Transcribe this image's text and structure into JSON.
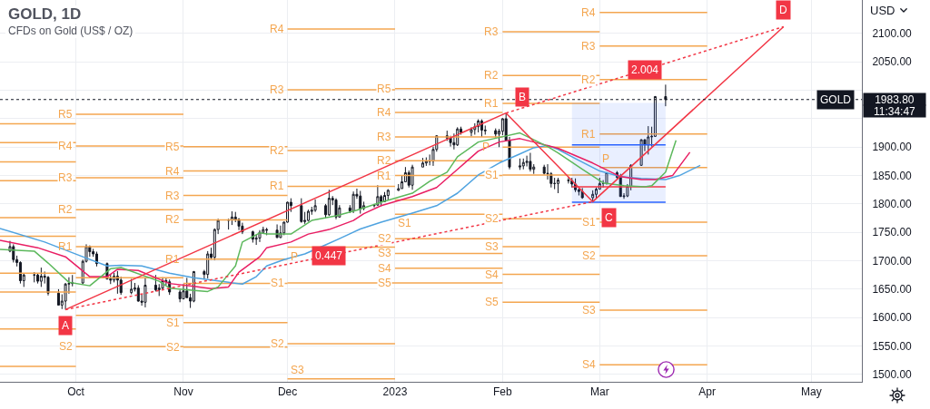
{
  "chart_data": {
    "type": "candlestick",
    "title": "GOLD, 1D",
    "subtitle": "CFDs on Gold (US$ / OZ)",
    "ylabel": "USD",
    "color": "#131722",
    "x": [
      "2022-09-12",
      "2022-09-13",
      "2022-09-14",
      "2022-09-15",
      "2022-09-16",
      "2022-09-19",
      "2022-09-20",
      "2022-09-21",
      "2022-09-22",
      "2022-09-23",
      "2022-09-26",
      "2022-09-27",
      "2022-09-28",
      "2022-09-29",
      "2022-09-30",
      "2022-10-03",
      "2022-10-04",
      "2022-10-05",
      "2022-10-06",
      "2022-10-07",
      "2022-10-10",
      "2022-10-11",
      "2022-10-12",
      "2022-10-13",
      "2022-10-14",
      "2022-10-17",
      "2022-10-18",
      "2022-10-19",
      "2022-10-20",
      "2022-10-21",
      "2022-10-24",
      "2022-10-25",
      "2022-10-26",
      "2022-10-27",
      "2022-10-28",
      "2022-10-31",
      "2022-11-01",
      "2022-11-02",
      "2022-11-03",
      "2022-11-04",
      "2022-11-07",
      "2022-11-08",
      "2022-11-09",
      "2022-11-10",
      "2022-11-11",
      "2022-11-14",
      "2022-11-15",
      "2022-11-16",
      "2022-11-17",
      "2022-11-18",
      "2022-11-21",
      "2022-11-22",
      "2022-11-23",
      "2022-11-24",
      "2022-11-25",
      "2022-11-28",
      "2022-11-29",
      "2022-11-30",
      "2022-12-01",
      "2022-12-02",
      "2022-12-05",
      "2022-12-06",
      "2022-12-07",
      "2022-12-08",
      "2022-12-09",
      "2022-12-12",
      "2022-12-13",
      "2022-12-14",
      "2022-12-15",
      "2022-12-16",
      "2022-12-19",
      "2022-12-20",
      "2022-12-21",
      "2022-12-22",
      "2022-12-23",
      "2022-12-26",
      "2022-12-27",
      "2022-12-28",
      "2022-12-29",
      "2022-12-30",
      "2023-01-02",
      "2023-01-03",
      "2023-01-04",
      "2023-01-05",
      "2023-01-06",
      "2023-01-09",
      "2023-01-10",
      "2023-01-11",
      "2023-01-12",
      "2023-01-13",
      "2023-01-16",
      "2023-01-17",
      "2023-01-18",
      "2023-01-19",
      "2023-01-20",
      "2023-01-23",
      "2023-01-24",
      "2023-01-25",
      "2023-01-26",
      "2023-01-27",
      "2023-01-30",
      "2023-01-31",
      "2023-02-01",
      "2023-02-02",
      "2023-02-03",
      "2023-02-06",
      "2023-02-07",
      "2023-02-08",
      "2023-02-09",
      "2023-02-10",
      "2023-02-13",
      "2023-02-14",
      "2023-02-15",
      "2023-02-16",
      "2023-02-17",
      "2023-02-20",
      "2023-02-21",
      "2023-02-22",
      "2023-02-23",
      "2023-02-24",
      "2023-02-27",
      "2023-02-28",
      "2023-03-01",
      "2023-03-02",
      "2023-03-03",
      "2023-03-06",
      "2023-03-07",
      "2023-03-08",
      "2023-03-09",
      "2023-03-10",
      "2023-03-13",
      "2023-03-14",
      "2023-03-15",
      "2023-03-16",
      "2023-03-17",
      "2023-03-20"
    ],
    "ohlc": [
      [
        1717,
        1735,
        1715,
        1725
      ],
      [
        1725,
        1729,
        1697,
        1702
      ],
      [
        1702,
        1709,
        1690,
        1697
      ],
      [
        1697,
        1699,
        1660,
        1665
      ],
      [
        1665,
        1677,
        1654,
        1675
      ],
      [
        1675,
        1680,
        1662,
        1675
      ],
      [
        1675,
        1677,
        1660,
        1664
      ],
      [
        1664,
        1688,
        1654,
        1673
      ],
      [
        1673,
        1681,
        1660,
        1671
      ],
      [
        1671,
        1673,
        1639,
        1643
      ],
      [
        1643,
        1650,
        1622,
        1622
      ],
      [
        1622,
        1641,
        1615,
        1629
      ],
      [
        1629,
        1661,
        1614,
        1659
      ],
      [
        1659,
        1671,
        1642,
        1660
      ],
      [
        1660,
        1675,
        1655,
        1661
      ],
      [
        1661,
        1702,
        1659,
        1699
      ],
      [
        1699,
        1729,
        1697,
        1725
      ],
      [
        1725,
        1727,
        1707,
        1716
      ],
      [
        1716,
        1721,
        1707,
        1712
      ],
      [
        1712,
        1716,
        1690,
        1695
      ],
      [
        1695,
        1697,
        1667,
        1668
      ],
      [
        1668,
        1677,
        1659,
        1666
      ],
      [
        1666,
        1679,
        1662,
        1673
      ],
      [
        1673,
        1682,
        1642,
        1666
      ],
      [
        1666,
        1672,
        1640,
        1644
      ],
      [
        1644,
        1668,
        1641,
        1650
      ],
      [
        1650,
        1661,
        1646,
        1652
      ],
      [
        1652,
        1657,
        1628,
        1629
      ],
      [
        1629,
        1641,
        1621,
        1627
      ],
      [
        1627,
        1669,
        1618,
        1657
      ],
      [
        1657,
        1675,
        1646,
        1649
      ],
      [
        1649,
        1659,
        1638,
        1652
      ],
      [
        1652,
        1671,
        1649,
        1665
      ],
      [
        1665,
        1670,
        1657,
        1663
      ],
      [
        1663,
        1667,
        1640,
        1645
      ],
      [
        1645,
        1649,
        1627,
        1633
      ],
      [
        1633,
        1659,
        1632,
        1647
      ],
      [
        1647,
        1670,
        1635,
        1635
      ],
      [
        1635,
        1642,
        1617,
        1629
      ],
      [
        1629,
        1682,
        1627,
        1681
      ],
      [
        1681,
        1684,
        1667,
        1676
      ],
      [
        1676,
        1717,
        1669,
        1712
      ],
      [
        1712,
        1723,
        1702,
        1706
      ],
      [
        1706,
        1757,
        1701,
        1755
      ],
      [
        1755,
        1774,
        1747,
        1771
      ],
      [
        1771,
        1774,
        1755,
        1772
      ],
      [
        1772,
        1787,
        1763,
        1777
      ],
      [
        1777,
        1786,
        1768,
        1773
      ],
      [
        1773,
        1775,
        1754,
        1761
      ],
      [
        1761,
        1767,
        1747,
        1751
      ],
      [
        1751,
        1753,
        1732,
        1738
      ],
      [
        1738,
        1746,
        1728,
        1740
      ],
      [
        1740,
        1754,
        1733,
        1750
      ],
      [
        1750,
        1760,
        1749,
        1755
      ],
      [
        1755,
        1758,
        1745,
        1754
      ],
      [
        1754,
        1764,
        1740,
        1741
      ],
      [
        1741,
        1762,
        1740,
        1749
      ],
      [
        1749,
        1769,
        1745,
        1768
      ],
      [
        1768,
        1804,
        1767,
        1803
      ],
      [
        1803,
        1810,
        1786,
        1797
      ],
      [
        1797,
        1810,
        1767,
        1769
      ],
      [
        1769,
        1786,
        1765,
        1771
      ],
      [
        1771,
        1790,
        1769,
        1787
      ],
      [
        1787,
        1795,
        1781,
        1789
      ],
      [
        1789,
        1808,
        1786,
        1797
      ],
      [
        1797,
        1800,
        1775,
        1781
      ],
      [
        1781,
        1825,
        1779,
        1810
      ],
      [
        1810,
        1814,
        1798,
        1807
      ],
      [
        1807,
        1810,
        1773,
        1777
      ],
      [
        1777,
        1798,
        1776,
        1793
      ],
      [
        1793,
        1798,
        1784,
        1788
      ],
      [
        1788,
        1822,
        1784,
        1817
      ],
      [
        1817,
        1827,
        1809,
        1814
      ],
      [
        1814,
        1823,
        1783,
        1792
      ],
      [
        1792,
        1804,
        1789,
        1797
      ],
      [
        1797,
        1800,
        1794,
        1798
      ],
      [
        1798,
        1833,
        1797,
        1813
      ],
      [
        1813,
        1816,
        1796,
        1804
      ],
      [
        1804,
        1821,
        1803,
        1815
      ],
      [
        1815,
        1826,
        1807,
        1824
      ],
      [
        1824,
        1835,
        1823,
        1827
      ],
      [
        1827,
        1850,
        1827,
        1839
      ],
      [
        1839,
        1865,
        1839,
        1855
      ],
      [
        1855,
        1859,
        1829,
        1833
      ],
      [
        1833,
        1869,
        1825,
        1865
      ],
      [
        1865,
        1881,
        1865,
        1872
      ],
      [
        1872,
        1882,
        1867,
        1876
      ],
      [
        1876,
        1887,
        1868,
        1875
      ],
      [
        1875,
        1901,
        1867,
        1896
      ],
      [
        1896,
        1921,
        1892,
        1920
      ],
      [
        1920,
        1929,
        1911,
        1916
      ],
      [
        1916,
        1920,
        1901,
        1908
      ],
      [
        1908,
        1924,
        1896,
        1904
      ],
      [
        1904,
        1935,
        1902,
        1932
      ],
      [
        1932,
        1936,
        1922,
        1926
      ],
      [
        1926,
        1935,
        1919,
        1931
      ],
      [
        1931,
        1942,
        1922,
        1936
      ],
      [
        1936,
        1949,
        1926,
        1946
      ],
      [
        1946,
        1949,
        1918,
        1930
      ],
      [
        1930,
        1938,
        1922,
        1929
      ],
      [
        1929,
        1933,
        1917,
        1923
      ],
      [
        1923,
        1932,
        1900,
        1928
      ],
      [
        1928,
        1951,
        1921,
        1950
      ],
      [
        1950,
        1960,
        1910,
        1912
      ],
      [
        1912,
        1918,
        1861,
        1865
      ],
      [
        1865,
        1880,
        1860,
        1867
      ],
      [
        1867,
        1880,
        1861,
        1873
      ],
      [
        1873,
        1885,
        1866,
        1875
      ],
      [
        1875,
        1890,
        1857,
        1861
      ],
      [
        1861,
        1870,
        1853,
        1865
      ],
      [
        1865,
        1869,
        1852,
        1854
      ],
      [
        1854,
        1870,
        1843,
        1853
      ],
      [
        1853,
        1856,
        1829,
        1836
      ],
      [
        1836,
        1846,
        1826,
        1836
      ],
      [
        1836,
        1846,
        1819,
        1842
      ],
      [
        1842,
        1847,
        1836,
        1841
      ],
      [
        1841,
        1846,
        1829,
        1835
      ],
      [
        1835,
        1845,
        1821,
        1825
      ],
      [
        1825,
        1828,
        1815,
        1822
      ],
      [
        1822,
        1828,
        1809,
        1811
      ],
      [
        1811,
        1824,
        1804,
        1817
      ],
      [
        1817,
        1829,
        1809,
        1826
      ],
      [
        1826,
        1846,
        1826,
        1836
      ],
      [
        1836,
        1842,
        1829,
        1836
      ],
      [
        1836,
        1856,
        1834,
        1855
      ],
      [
        1855,
        1858,
        1843,
        1847
      ],
      [
        1847,
        1853,
        1813,
        1813
      ],
      [
        1813,
        1819,
        1809,
        1814
      ],
      [
        1814,
        1835,
        1812,
        1831
      ],
      [
        1831,
        1870,
        1824,
        1868
      ],
      [
        1868,
        1914,
        1867,
        1913
      ],
      [
        1913,
        1914,
        1893,
        1904
      ],
      [
        1904,
        1937,
        1887,
        1918
      ],
      [
        1918,
        1936,
        1901,
        1919
      ],
      [
        1919,
        1990,
        1918,
        1989
      ],
      [
        1989,
        2010,
        1972,
        1983.8
      ]
    ],
    "series": [
      {
        "type": "line",
        "color": "#f4a650",
        "x": [
          "2022-09-09T03:00",
          "2022-10-01"
        ],
        "values": [
          1941,
          1941
        ]
      },
      {
        "type": "line",
        "color": "#f4a650",
        "x": [
          "2022-09-09T03:00",
          "2022-10-01"
        ],
        "values": [
          1908,
          1908
        ]
      },
      {
        "type": "line",
        "color": "#f4a650",
        "x": [
          "2022-09-09T03:00",
          "2022-10-01"
        ],
        "values": [
          1874,
          1874
        ]
      },
      {
        "type": "line",
        "color": "#f4a650",
        "x": [
          "2022-09-09T03:00",
          "2022-10-01"
        ],
        "values": [
          1841,
          1841
        ]
      },
      {
        "type": "line",
        "color": "#f4a650",
        "x": [
          "2022-09-09T03:00",
          "2022-10-01"
        ],
        "values": [
          1776,
          1776
        ]
      },
      {
        "type": "line",
        "color": "#f4a650",
        "x": [
          "2022-09-09T03:00",
          "2022-10-01"
        ],
        "values": [
          1743,
          1743
        ]
      },
      {
        "type": "line",
        "color": "#f4a650",
        "x": [
          "2022-09-09T03:00",
          "2022-10-01"
        ],
        "values": [
          1678,
          1678
        ]
      },
      {
        "type": "line",
        "color": "#f4a650",
        "x": [
          "2022-09-09T03:00",
          "2022-10-01"
        ],
        "values": [
          1645,
          1645
        ]
      },
      {
        "type": "line",
        "color": "#f4a650",
        "x": [
          "2022-09-09T03:00",
          "2022-10-01"
        ],
        "values": [
          1580,
          1580
        ]
      },
      {
        "type": "line",
        "color": "#f4a650",
        "x": [
          "2022-09-09T03:00",
          "2022-10-01"
        ],
        "values": [
          1514,
          1514
        ]
      },
      {
        "type": "line",
        "name": "R5",
        "color": "#f4a650",
        "x": [
          "2022-10-01",
          "2022-11-01"
        ],
        "values": [
          1958,
          1958
        ]
      },
      {
        "type": "line",
        "name": "R4",
        "color": "#f4a650",
        "x": [
          "2022-10-01",
          "2022-11-01"
        ],
        "values": [
          1902,
          1902
        ]
      },
      {
        "type": "line",
        "name": "R3",
        "color": "#f4a650",
        "x": [
          "2022-10-01",
          "2022-11-01"
        ],
        "values": [
          1846,
          1846
        ]
      },
      {
        "type": "line",
        "name": "R2",
        "color": "#f4a650",
        "x": [
          "2022-10-01",
          "2022-11-01"
        ],
        "values": [
          1790,
          1790
        ]
      },
      {
        "type": "line",
        "name": "R1",
        "color": "#f4a650",
        "x": [
          "2022-10-01",
          "2022-11-01"
        ],
        "values": [
          1725,
          1725
        ]
      },
      {
        "type": "line",
        "color": "#f4a650",
        "x": [
          "2022-10-01",
          "2022-11-01"
        ],
        "values": [
          1670,
          1670
        ]
      },
      {
        "type": "line",
        "color": "#f4a650",
        "x": [
          "2022-10-01",
          "2022-11-01"
        ],
        "values": [
          1604,
          1604
        ]
      },
      {
        "type": "line",
        "name": "S2",
        "color": "#f4a650",
        "x": [
          "2022-10-01",
          "2022-11-01"
        ],
        "values": [
          1549,
          1549
        ]
      },
      {
        "type": "line",
        "name": "R5",
        "color": "#f4a650",
        "x": [
          "2022-11-01",
          "2022-12-01"
        ],
        "values": [
          1901,
          1901
        ]
      },
      {
        "type": "line",
        "name": "R4",
        "color": "#f4a650",
        "x": [
          "2022-11-01",
          "2022-12-01"
        ],
        "values": [
          1858,
          1858
        ]
      },
      {
        "type": "line",
        "name": "R3",
        "color": "#f4a650",
        "x": [
          "2022-11-01",
          "2022-12-01"
        ],
        "values": [
          1815,
          1815
        ]
      },
      {
        "type": "line",
        "name": "R2",
        "color": "#f4a650",
        "x": [
          "2022-11-01",
          "2022-12-01"
        ],
        "values": [
          1772,
          1772
        ]
      },
      {
        "type": "line",
        "name": "R1",
        "color": "#f4a650",
        "x": [
          "2022-11-01",
          "2022-12-01"
        ],
        "values": [
          1703,
          1703
        ]
      },
      {
        "type": "line",
        "color": "#f4a650",
        "x": [
          "2022-11-01",
          "2022-12-01"
        ],
        "values": [
          1660,
          1660
        ]
      },
      {
        "type": "line",
        "name": "S1",
        "color": "#f4a650",
        "x": [
          "2022-11-01",
          "2022-12-01"
        ],
        "values": [
          1591,
          1591
        ]
      },
      {
        "type": "line",
        "name": "S2",
        "color": "#f4a650",
        "x": [
          "2022-11-01",
          "2022-12-01"
        ],
        "values": [
          1548,
          1548
        ]
      },
      {
        "type": "line",
        "name": "R4",
        "color": "#f4a650",
        "x": [
          "2022-12-01",
          "2023-01-01"
        ],
        "values": [
          2108,
          2108
        ]
      },
      {
        "type": "line",
        "name": "R3",
        "color": "#f4a650",
        "x": [
          "2022-12-01",
          "2023-01-01"
        ],
        "values": [
          2001,
          2001
        ]
      },
      {
        "type": "line",
        "name": "R2",
        "color": "#f4a650",
        "x": [
          "2022-12-01",
          "2023-01-01"
        ],
        "values": [
          1894,
          1894
        ]
      },
      {
        "type": "line",
        "name": "R1",
        "color": "#f4a650",
        "x": [
          "2022-12-01",
          "2023-01-01"
        ],
        "values": [
          1831,
          1831
        ]
      },
      {
        "type": "line",
        "name": "P",
        "color": "#f4a650",
        "x": [
          "2022-12-01",
          "2023-01-01"
        ],
        "values": [
          1724,
          1724
        ]
      },
      {
        "type": "line",
        "name": "S1",
        "color": "#f4a650",
        "x": [
          "2022-12-01",
          "2023-01-01"
        ],
        "values": [
          1661,
          1661
        ]
      },
      {
        "type": "line",
        "name": "S2",
        "color": "#f4a650",
        "x": [
          "2022-12-01",
          "2023-01-01"
        ],
        "values": [
          1554,
          1554
        ]
      },
      {
        "type": "line",
        "name": "S3",
        "color": "#f4a650",
        "x": [
          "2022-12-01",
          "2023-01-01"
        ],
        "values": [
          1492,
          1492
        ]
      },
      {
        "type": "line",
        "name": "R5",
        "color": "#f4a650",
        "x": [
          "2023-01-01",
          "2023-02-01"
        ],
        "values": [
          2003,
          2003
        ]
      },
      {
        "type": "line",
        "name": "R4",
        "color": "#f4a650",
        "x": [
          "2023-01-01",
          "2023-02-01"
        ],
        "values": [
          1961,
          1961
        ]
      },
      {
        "type": "line",
        "name": "R3",
        "color": "#f4a650",
        "x": [
          "2023-01-01",
          "2023-02-01"
        ],
        "values": [
          1918,
          1918
        ]
      },
      {
        "type": "line",
        "name": "R2",
        "color": "#f4a650",
        "x": [
          "2023-01-01",
          "2023-02-01"
        ],
        "values": [
          1876,
          1876
        ]
      },
      {
        "type": "line",
        "name": "R1",
        "color": "#f4a650",
        "x": [
          "2023-01-01",
          "2023-02-01"
        ],
        "values": [
          1850,
          1850
        ]
      },
      {
        "type": "line",
        "color": "#f4a650",
        "x": [
          "2023-01-01",
          "2023-02-01"
        ],
        "values": [
          1807,
          1807
        ]
      },
      {
        "type": "line",
        "name": "S1",
        "color": "#f4a650",
        "x": [
          "2023-01-01",
          "2023-02-01"
        ],
        "values": [
          1782,
          1782
        ]
      },
      {
        "type": "line",
        "name": "S2",
        "color": "#f4a650",
        "x": [
          "2023-01-01",
          "2023-02-01"
        ],
        "values": [
          1739,
          1739
        ]
      },
      {
        "type": "line",
        "name": "S3",
        "color": "#f4a650",
        "x": [
          "2023-01-01",
          "2023-02-01"
        ],
        "values": [
          1713,
          1713
        ]
      },
      {
        "type": "line",
        "name": "S4",
        "color": "#f4a650",
        "x": [
          "2023-01-01",
          "2023-02-01"
        ],
        "values": [
          1687,
          1687
        ]
      },
      {
        "type": "line",
        "name": "S5",
        "color": "#f4a650",
        "x": [
          "2023-01-01",
          "2023-02-01"
        ],
        "values": [
          1661,
          1661
        ]
      },
      {
        "type": "line",
        "name": "R3",
        "color": "#f4a650",
        "x": [
          "2023-02-01",
          "2023-03-01"
        ],
        "values": [
          2103,
          2103
        ]
      },
      {
        "type": "line",
        "name": "R2",
        "color": "#f4a650",
        "x": [
          "2023-02-01",
          "2023-03-01"
        ],
        "values": [
          2026,
          2026
        ]
      },
      {
        "type": "line",
        "name": "R1",
        "color": "#f4a650",
        "x": [
          "2023-02-01",
          "2023-03-01"
        ],
        "values": [
          1977,
          1977
        ]
      },
      {
        "type": "line",
        "name": "P",
        "color": "#f4a650",
        "x": [
          "2023-02-01",
          "2023-03-01"
        ],
        "values": [
          1900,
          1900
        ]
      },
      {
        "type": "line",
        "name": "S1",
        "color": "#f4a650",
        "x": [
          "2023-02-01",
          "2023-03-01"
        ],
        "values": [
          1851,
          1851
        ]
      },
      {
        "type": "line",
        "name": "S2",
        "color": "#f4a650",
        "x": [
          "2023-02-01",
          "2023-03-01"
        ],
        "values": [
          1774,
          1774
        ]
      },
      {
        "type": "line",
        "name": "S3",
        "color": "#f4a650",
        "x": [
          "2023-02-01",
          "2023-03-01"
        ],
        "values": [
          1725,
          1725
        ]
      },
      {
        "type": "line",
        "name": "S4",
        "color": "#f4a650",
        "x": [
          "2023-02-01",
          "2023-03-01"
        ],
        "values": [
          1676,
          1676
        ]
      },
      {
        "type": "line",
        "name": "S5",
        "color": "#f4a650",
        "x": [
          "2023-02-01",
          "2023-03-01"
        ],
        "values": [
          1627,
          1627
        ]
      },
      {
        "type": "line",
        "name": "R4",
        "color": "#f4a650",
        "x": [
          "2023-03-01",
          "2023-04-01"
        ],
        "values": [
          2137,
          2137
        ]
      },
      {
        "type": "line",
        "name": "R3",
        "color": "#f4a650",
        "x": [
          "2023-03-01",
          "2023-04-01"
        ],
        "values": [
          2078,
          2078
        ]
      },
      {
        "type": "line",
        "name": "R2",
        "color": "#f4a650",
        "x": [
          "2023-03-01",
          "2023-04-01"
        ],
        "values": [
          2019,
          2019
        ]
      },
      {
        "type": "line",
        "name": "R1",
        "color": "#f4a650",
        "x": [
          "2023-03-01",
          "2023-04-01"
        ],
        "values": [
          1923,
          1923
        ]
      },
      {
        "type": "line",
        "name": "P",
        "color": "#f4a650",
        "x": [
          "2023-03-01",
          "2023-04-01"
        ],
        "values": [
          1864,
          1864
        ]
      },
      {
        "type": "line",
        "name": "S1",
        "color": "#f4a650",
        "x": [
          "2023-03-01",
          "2023-04-01"
        ],
        "values": [
          1768,
          1768
        ]
      },
      {
        "type": "line",
        "name": "S2",
        "color": "#f4a650",
        "x": [
          "2023-03-01",
          "2023-04-01"
        ],
        "values": [
          1709,
          1709
        ]
      },
      {
        "type": "line",
        "name": "S3",
        "color": "#f4a650",
        "x": [
          "2023-03-01",
          "2023-04-01"
        ],
        "values": [
          1613,
          1613
        ]
      },
      {
        "type": "line",
        "name": "S4",
        "color": "#f4a650",
        "x": [
          "2023-03-01",
          "2023-04-01"
        ],
        "values": [
          1517,
          1517
        ]
      },
      {
        "type": "line",
        "color": "#2962ff",
        "x": [
          "2023-02-21",
          "2023-03-20"
        ],
        "values": [
          1904,
          1904
        ],
        "lower": [
          1803,
          1803
        ],
        "upper": [
          1978,
          1978
        ]
      },
      {
        "type": "line",
        "color": "#2962ff",
        "x": [
          "2023-02-21",
          "2023-03-20"
        ],
        "values": [
          1803,
          1803
        ]
      },
      {
        "type": "line",
        "color": "#f23645",
        "x": [
          "2023-02-21",
          "2023-03-20"
        ],
        "values": [
          1830,
          1830
        ]
      },
      {
        "type": "line",
        "color": "#4fa3e0",
        "x": [
          "2022-09-09T03:00",
          "2022-09-22",
          "2022-10-03",
          "2022-10-10",
          "2022-10-14",
          "2022-10-20",
          "2022-10-28",
          "2022-11-04",
          "2022-11-14",
          "2022-11-18",
          "2022-11-22",
          "2022-11-25",
          "2022-11-30",
          "2022-12-06",
          "2022-12-12",
          "2022-12-16",
          "2022-12-22",
          "2022-12-28",
          "2023-01-06",
          "2023-01-13",
          "2023-01-19",
          "2023-01-25",
          "2023-01-31",
          "2023-02-06",
          "2023-02-10",
          "2023-02-14",
          "2023-02-17",
          "2023-02-22",
          "2023-03-01",
          "2023-03-07",
          "2023-03-13",
          "2023-03-20",
          "2023-03-24",
          "2023-03-30"
        ],
        "values": [
          1757,
          1733,
          1707,
          1691,
          1692,
          1691,
          1678,
          1670,
          1662,
          1659,
          1672,
          1691,
          1702,
          1712,
          1728,
          1739,
          1756,
          1768,
          1784,
          1797,
          1819,
          1851,
          1872,
          1888,
          1899,
          1903,
          1896,
          1880,
          1858,
          1848,
          1845,
          1843,
          1850,
          1868
        ]
      },
      {
        "type": "line",
        "color": "#e91e63",
        "x": [
          "2022-09-09T03:00",
          "2022-09-20",
          "2022-09-28",
          "2022-10-05",
          "2022-10-10",
          "2022-10-13",
          "2022-10-19",
          "2022-10-28",
          "2022-11-04",
          "2022-11-09",
          "2022-11-14",
          "2022-11-17",
          "2022-11-23",
          "2022-11-25",
          "2022-12-02",
          "2022-12-07",
          "2022-12-13",
          "2022-12-20",
          "2022-12-23",
          "2022-12-28",
          "2023-01-06",
          "2023-01-13",
          "2023-01-19",
          "2023-01-25",
          "2023-01-31",
          "2023-02-06",
          "2023-02-10",
          "2023-02-17",
          "2023-02-27",
          "2023-03-07",
          "2023-03-13",
          "2023-03-17",
          "2023-03-22",
          "2023-03-27"
        ],
        "values": [
          1736,
          1723,
          1707,
          1672,
          1672,
          1685,
          1683,
          1660,
          1655,
          1651,
          1654,
          1680,
          1707,
          1723,
          1733,
          1747,
          1755,
          1771,
          1783,
          1797,
          1813,
          1829,
          1861,
          1893,
          1909,
          1915,
          1909,
          1898,
          1872,
          1848,
          1843,
          1843,
          1850,
          1891
        ]
      },
      {
        "type": "line",
        "color": "#5cb85c",
        "x": [
          "2022-09-09T03:00",
          "2022-09-19",
          "2022-09-23",
          "2022-09-29",
          "2022-10-05",
          "2022-10-11",
          "2022-10-14",
          "2022-10-25",
          "2022-10-28",
          "2022-11-04",
          "2022-11-08",
          "2022-11-11",
          "2022-11-16",
          "2022-11-18",
          "2022-11-23",
          "2022-11-25",
          "2022-12-02",
          "2022-12-08",
          "2022-12-15",
          "2022-12-21",
          "2022-12-28",
          "2023-01-06",
          "2023-01-11",
          "2023-01-16",
          "2023-01-19",
          "2023-01-25",
          "2023-01-31",
          "2023-02-06",
          "2023-02-14",
          "2023-02-17",
          "2023-02-24",
          "2023-03-02",
          "2023-03-08",
          "2023-03-14",
          "2023-03-16",
          "2023-03-20",
          "2023-03-23"
        ],
        "values": [
          1720,
          1717,
          1696,
          1662,
          1656,
          1686,
          1688,
          1664,
          1652,
          1648,
          1646,
          1654,
          1691,
          1733,
          1749,
          1747,
          1747,
          1771,
          1779,
          1789,
          1803,
          1819,
          1840,
          1856,
          1883,
          1909,
          1917,
          1925,
          1901,
          1890,
          1861,
          1837,
          1832,
          1830,
          1832,
          1856,
          1912
        ]
      },
      {
        "type": "line",
        "color": "#f23645",
        "x": [
          "2022-09-28",
          "2023-02-02",
          "2023-02-27",
          "2023-04-23"
        ],
        "values": [
          1614,
          1960,
          1804,
          2112
        ]
      },
      {
        "type": "line",
        "color": "#f23645",
        "line_style": "dotted",
        "x": [
          "2022-09-28",
          "2023-02-27"
        ],
        "values": [
          1614,
          1804
        ]
      },
      {
        "type": "line",
        "color": "#f23645",
        "line_style": "dotted",
        "x": [
          "2023-02-02",
          "2023-04-23"
        ],
        "values": [
          1960,
          2112
        ]
      }
    ],
    "xlim": [
      "2022-09-09T03:00",
      "2023-05-15T14:00"
    ],
    "xticks": [
      {
        "value": "2022-10-01",
        "label": "Oct"
      },
      {
        "value": "2022-11-01",
        "label": "Nov"
      },
      {
        "value": "2022-12-01",
        "label": "Dec"
      },
      {
        "value": "2023-01-01",
        "label": "2023"
      },
      {
        "value": "2023-02-01",
        "label": "Feb"
      },
      {
        "value": "2023-03-01",
        "label": "Mar"
      },
      {
        "value": "2023-04-01",
        "label": "Apr"
      },
      {
        "value": "2023-05-01",
        "label": "May"
      }
    ],
    "ylim": [
      1487,
      2159
    ],
    "yticks": [
      {
        "value": 1500,
        "label": "1500.00"
      },
      {
        "value": 1550,
        "label": "1550.00"
      },
      {
        "value": 1600,
        "label": "1600.00"
      },
      {
        "value": 1650,
        "label": "1650.00"
      },
      {
        "value": 1700,
        "label": "1700.00"
      },
      {
        "value": 1750,
        "label": "1750.00"
      },
      {
        "value": 1800,
        "label": "1800.00"
      },
      {
        "value": 1850,
        "label": "1850.00"
      },
      {
        "value": 1900,
        "label": "1900.00"
      },
      {
        "value": 1950,
        "label": null
      },
      {
        "value": 2000,
        "label": null
      },
      {
        "value": 2050,
        "label": "2050.00"
      },
      {
        "value": 2100,
        "label": "2100.00"
      }
    ],
    "grid": true,
    "ref_lines": [
      {
        "axis": "y",
        "value": 1983.8,
        "label": "1983.80",
        "line_style": "dotted",
        "color": "#131722"
      }
    ],
    "annotations": [
      {
        "text": "A",
        "x": "2022-09-28",
        "y": 1614
      },
      {
        "text": "B",
        "x": "2023-02-02",
        "y": 1960
      },
      {
        "text": "C",
        "x": "2023-02-27",
        "y": 1804
      },
      {
        "text": "D",
        "x": "2023-04-23",
        "y": 2112
      },
      {
        "text": "0.447",
        "x": "2022-12-13",
        "y": 1709
      },
      {
        "text": "2.004",
        "x": "2023-03-14",
        "y": 2036
      },
      {
        "text": "GOLD",
        "x": "2023-05-08",
        "y": 1983.8
      },
      "11:34:47"
    ]
  }
}
